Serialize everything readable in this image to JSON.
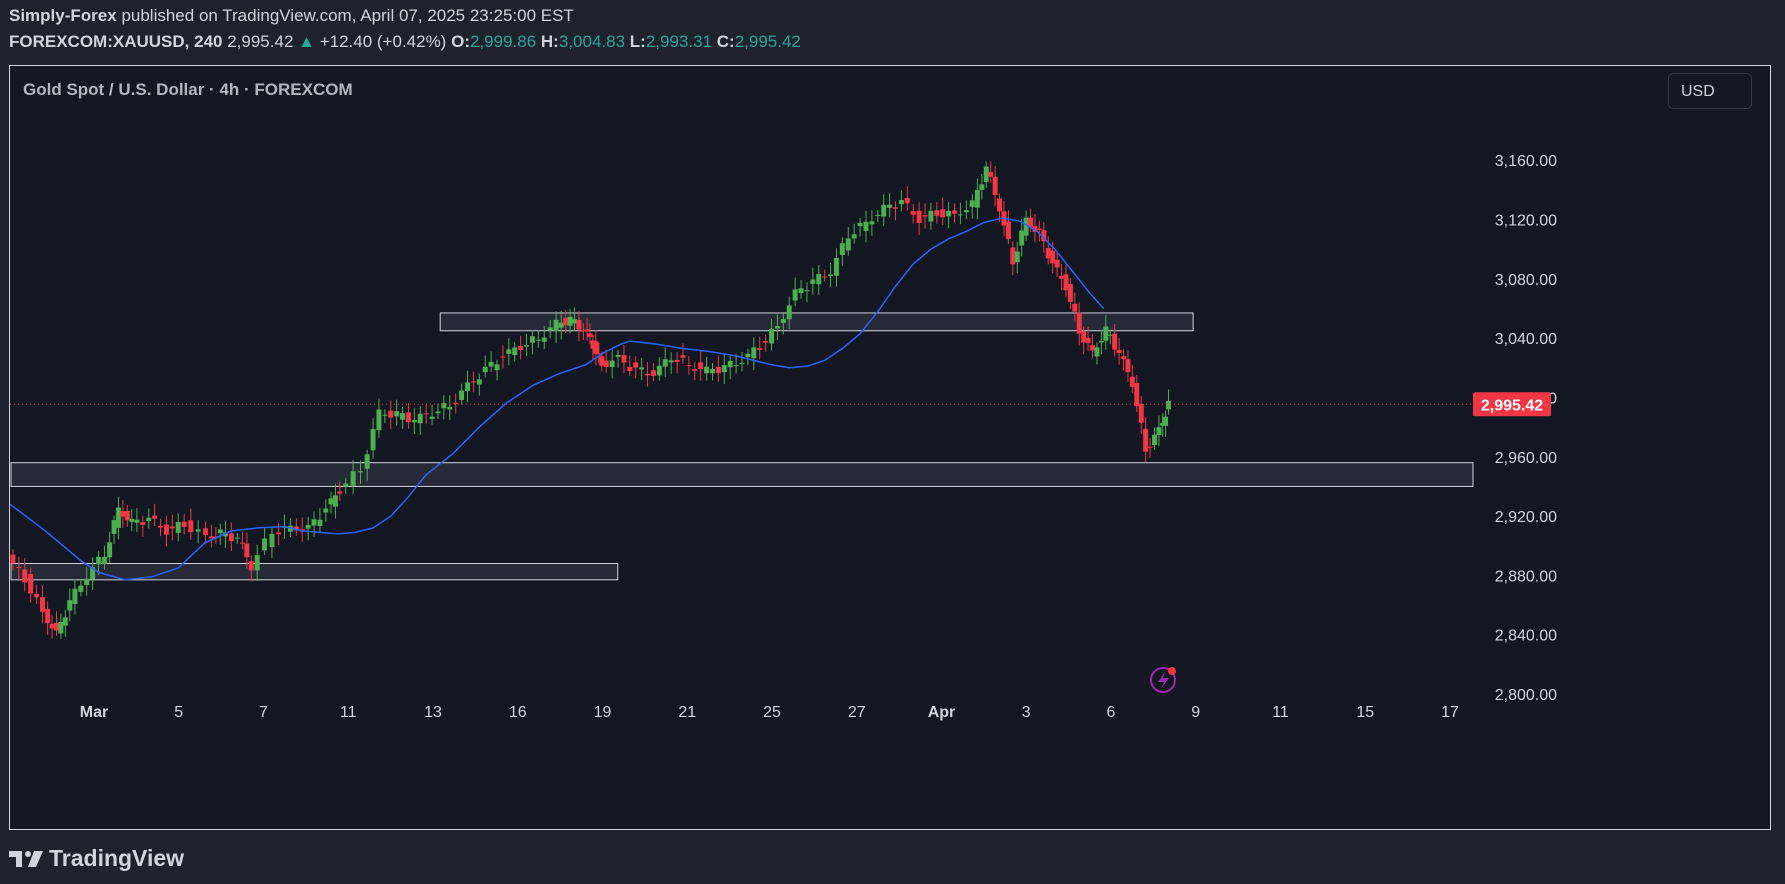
{
  "header": {
    "publisher": "Simply-Forex",
    "published_text": "published on TradingView.com, April 07, 2025 23:25:00 EST",
    "symbol": "FOREXCOM:XAUUSD, 240",
    "last": "2,995.42",
    "change": "+12.40 (+0.42%)",
    "o_label": "O:",
    "o": "2,999.86",
    "h_label": "H:",
    "h": "3,004.83",
    "l_label": "L:",
    "l": "2,993.31",
    "c_label": "C:",
    "c": "2,995.42"
  },
  "chart_title": "Gold Spot / U.S. Dollar · 4h · FOREXCOM",
  "currency_button": "USD",
  "footer_brand": "TradingView",
  "colors": {
    "background": "#131722",
    "up": "#26a69a",
    "candle_up": "#4caf50",
    "candle_down": "#f23645",
    "ma_line": "#2962ff",
    "zone_fill": "#2a2e39",
    "price_label": "#f23645"
  },
  "chart_data": {
    "type": "candlestick",
    "timeframe": "4h",
    "x_ticks": [
      "Mar",
      "5",
      "7",
      "11",
      "13",
      "16",
      "19",
      "21",
      "25",
      "27",
      "Apr",
      "3",
      "6",
      "9",
      "11",
      "15",
      "17"
    ],
    "y_ticks": [
      "3,160.00",
      "3,120.00",
      "3,080.00",
      "3,040.00",
      "3,000.00",
      "2,960.00",
      "2,920.00",
      "2,880.00",
      "2,840.00",
      "2,800.00"
    ],
    "ylim": [
      2800,
      3175
    ],
    "current_price": 2995.42,
    "current_price_label": "2,995.42",
    "zones": [
      {
        "x_start": 0.0,
        "x_end": 0.415,
        "low": 2877,
        "high": 2888
      },
      {
        "x_start": 0.0,
        "x_end": 1.0,
        "low": 2940,
        "high": 2956
      },
      {
        "x_start": 0.37,
        "x_end": 0.885,
        "low": 3045,
        "high": 3057
      }
    ],
    "price_path": [
      [
        0.0,
        2892
      ],
      [
        0.02,
        2878
      ],
      [
        0.04,
        2855
      ],
      [
        0.055,
        2840
      ],
      [
        0.07,
        2862
      ],
      [
        0.09,
        2880
      ],
      [
        0.11,
        2895
      ],
      [
        0.125,
        2925
      ],
      [
        0.14,
        2915
      ],
      [
        0.16,
        2918
      ],
      [
        0.18,
        2910
      ],
      [
        0.2,
        2915
      ],
      [
        0.225,
        2906
      ],
      [
        0.24,
        2908
      ],
      [
        0.26,
        2905
      ],
      [
        0.275,
        2886
      ],
      [
        0.3,
        2910
      ],
      [
        0.32,
        2912
      ],
      [
        0.34,
        2911
      ],
      [
        0.36,
        2925
      ],
      [
        0.375,
        2938
      ],
      [
        0.4,
        2952
      ],
      [
        0.42,
        2990
      ],
      [
        0.44,
        2988
      ],
      [
        0.46,
        2985
      ],
      [
        0.48,
        2990
      ],
      [
        0.5,
        2995
      ],
      [
        0.52,
        3008
      ],
      [
        0.54,
        3018
      ],
      [
        0.56,
        3028
      ],
      [
        0.58,
        3035
      ],
      [
        0.6,
        3040
      ],
      [
        0.62,
        3050
      ],
      [
        0.635,
        3052
      ],
      [
        0.65,
        3046
      ],
      [
        0.66,
        3036
      ],
      [
        0.67,
        3022
      ],
      [
        0.69,
        3026
      ],
      [
        0.71,
        3018
      ],
      [
        0.73,
        3016
      ],
      [
        0.75,
        3028
      ],
      [
        0.77,
        3022
      ],
      [
        0.79,
        3018
      ],
      [
        0.81,
        3020
      ],
      [
        0.83,
        3025
      ],
      [
        0.85,
        3035
      ],
      [
        0.87,
        3048
      ],
      [
        0.89,
        3070
      ],
      [
        0.91,
        3078
      ],
      [
        0.93,
        3085
      ],
      [
        0.95,
        3110
      ],
      [
        0.97,
        3118
      ],
      [
        0.99,
        3127
      ],
      [
        1.01,
        3132
      ],
      [
        1.03,
        3120
      ],
      [
        1.05,
        3125
      ],
      [
        1.07,
        3123
      ],
      [
        1.09,
        3130
      ],
      [
        1.105,
        3155
      ],
      [
        1.12,
        3128
      ],
      [
        1.135,
        3092
      ],
      [
        1.15,
        3120
      ],
      [
        1.165,
        3110
      ],
      [
        1.18,
        3090
      ],
      [
        1.195,
        3075
      ],
      [
        1.21,
        3045
      ],
      [
        1.225,
        3030
      ],
      [
        1.24,
        3045
      ],
      [
        1.255,
        3030
      ],
      [
        1.27,
        3010
      ],
      [
        1.285,
        2965
      ],
      [
        1.3,
        2978
      ],
      [
        1.31,
        2995
      ]
    ],
    "ma_path": [
      [
        0.0,
        2928
      ],
      [
        0.04,
        2910
      ],
      [
        0.08,
        2890
      ],
      [
        0.1,
        2882
      ],
      [
        0.13,
        2877
      ],
      [
        0.16,
        2879
      ],
      [
        0.19,
        2885
      ],
      [
        0.22,
        2902
      ],
      [
        0.25,
        2910
      ],
      [
        0.28,
        2912
      ],
      [
        0.31,
        2913
      ],
      [
        0.33,
        2910
      ],
      [
        0.35,
        2909
      ],
      [
        0.37,
        2908
      ],
      [
        0.39,
        2909
      ],
      [
        0.41,
        2912
      ],
      [
        0.43,
        2920
      ],
      [
        0.45,
        2933
      ],
      [
        0.47,
        2948
      ],
      [
        0.5,
        2962
      ],
      [
        0.53,
        2980
      ],
      [
        0.56,
        2996
      ],
      [
        0.59,
        3008
      ],
      [
        0.62,
        3016
      ],
      [
        0.65,
        3022
      ],
      [
        0.67,
        3030
      ],
      [
        0.69,
        3036
      ],
      [
        0.7,
        3038
      ],
      [
        0.73,
        3036
      ],
      [
        0.76,
        3033
      ],
      [
        0.79,
        3031
      ],
      [
        0.82,
        3028
      ],
      [
        0.84,
        3025
      ],
      [
        0.86,
        3022
      ],
      [
        0.88,
        3020
      ],
      [
        0.9,
        3021
      ],
      [
        0.92,
        3025
      ],
      [
        0.94,
        3033
      ],
      [
        0.96,
        3043
      ],
      [
        0.98,
        3058
      ],
      [
        1.0,
        3075
      ],
      [
        1.02,
        3090
      ],
      [
        1.04,
        3100
      ],
      [
        1.06,
        3107
      ],
      [
        1.08,
        3112
      ],
      [
        1.1,
        3118
      ],
      [
        1.12,
        3121
      ],
      [
        1.14,
        3119
      ],
      [
        1.16,
        3112
      ],
      [
        1.18,
        3100
      ],
      [
        1.2,
        3085
      ],
      [
        1.22,
        3070
      ],
      [
        1.235,
        3060
      ]
    ]
  }
}
